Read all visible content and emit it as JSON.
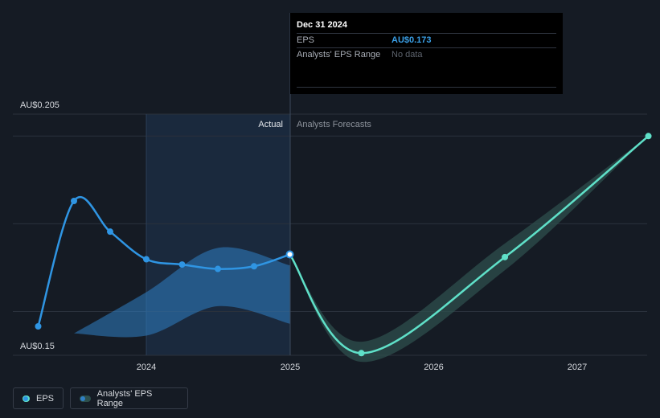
{
  "chart_data": {
    "type": "line",
    "currency_prefix": "AU$",
    "y_axis_labels": {
      "top": "AU$0.205",
      "bottom": "AU$0.15"
    },
    "ylim": [
      0.15,
      0.205
    ],
    "x_ticks": [
      {
        "label": "2024",
        "date": "2024-01-01"
      },
      {
        "label": "2025",
        "date": "2025-01-01"
      },
      {
        "label": "2026",
        "date": "2026-01-01"
      },
      {
        "label": "2027",
        "date": "2027-01-01"
      }
    ],
    "region_labels": {
      "actual": "Actual",
      "forecast": "Analysts Forecasts"
    },
    "series": [
      {
        "name": "EPS",
        "color": "#2f95e3",
        "points": [
          {
            "date": "2023-04-01",
            "value": 0.1566
          },
          {
            "date": "2023-07-01",
            "value": 0.1852
          },
          {
            "date": "2023-10-01",
            "value": 0.1782
          },
          {
            "date": "2024-01-01",
            "value": 0.1719
          },
          {
            "date": "2024-04-01",
            "value": 0.1707
          },
          {
            "date": "2024-07-01",
            "value": 0.1697
          },
          {
            "date": "2024-10-01",
            "value": 0.1703
          },
          {
            "date": "2024-12-31",
            "value": 0.173
          }
        ]
      },
      {
        "name": "EPS Forecast",
        "color": "#5fe0c8",
        "points": [
          {
            "date": "2024-12-31",
            "value": 0.173
          },
          {
            "date": "2025-07-01",
            "value": 0.1505
          },
          {
            "date": "2026-07-01",
            "value": 0.1724
          },
          {
            "date": "2027-07-01",
            "value": 0.2
          }
        ]
      }
    ],
    "ranges": [
      {
        "name": "Analysts' EPS Range (past)",
        "color": "#2f7fc4",
        "points": [
          {
            "date": "2023-07-01",
            "low": 0.155,
            "high": 0.155
          },
          {
            "date": "2024-01-01",
            "low": 0.1545,
            "high": 0.1644
          },
          {
            "date": "2024-07-01",
            "low": 0.1612,
            "high": 0.1745
          },
          {
            "date": "2024-12-31",
            "low": 0.1572,
            "high": 0.1705
          }
        ]
      },
      {
        "name": "Analysts' EPS Range",
        "color": "#2d4f4c",
        "points": [
          {
            "date": "2024-12-31",
            "low": 0.173,
            "high": 0.173
          },
          {
            "date": "2025-07-01",
            "low": 0.1485,
            "high": 0.1531
          },
          {
            "date": "2026-07-01",
            "low": 0.1694,
            "high": 0.1755
          },
          {
            "date": "2027-07-01",
            "low": 0.2,
            "high": 0.2
          }
        ]
      }
    ],
    "tooltip": {
      "date": "Dec 31 2024",
      "rows": [
        {
          "label": "EPS",
          "value": "AU$0.173"
        },
        {
          "label": "Analysts' EPS Range",
          "value": "No data"
        }
      ]
    },
    "legend": [
      {
        "label": "EPS",
        "color": "#2f95e3",
        "accent": "#5fe0c8"
      },
      {
        "label": "Analysts' EPS Range",
        "color": "#2f7fc4",
        "accent": "#2d4f4c"
      }
    ]
  }
}
